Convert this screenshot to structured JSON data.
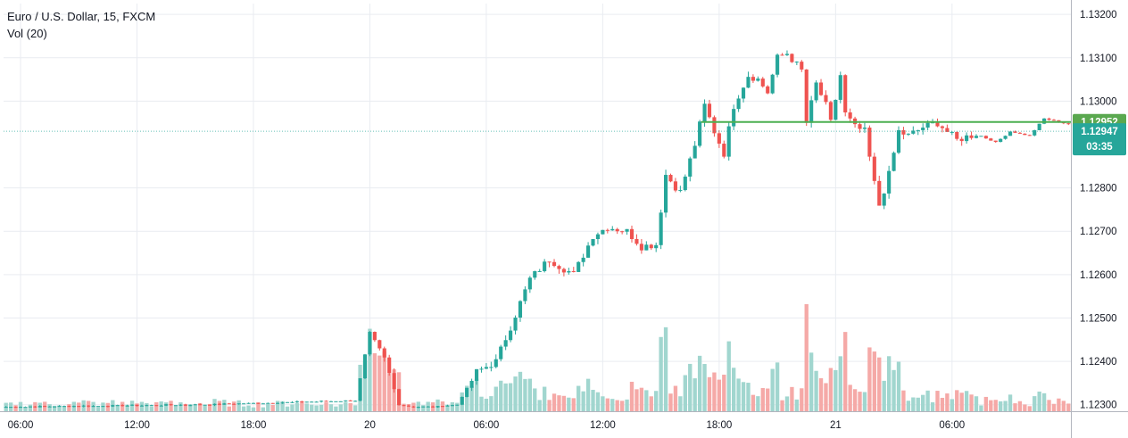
{
  "legend": {
    "title": "Euro / U.S. Dollar, 15, FXCM",
    "volume": "Vol (20)"
  },
  "chart_data": {
    "type": "candlestick",
    "symbol": "Euro / U.S. Dollar",
    "interval": "15",
    "source": "FXCM",
    "y_ticks": [
      "1.13200",
      "1.13100",
      "1.13000",
      "1.12800",
      "1.12700",
      "1.12600",
      "1.12500",
      "1.12400",
      "1.12300"
    ],
    "x_ticks": [
      {
        "label": "06:00",
        "bar": 3
      },
      {
        "label": "12:00",
        "bar": 27
      },
      {
        "label": "18:00",
        "bar": 51
      },
      {
        "label": "20",
        "bar": 75
      },
      {
        "label": "06:00",
        "bar": 99
      },
      {
        "label": "12:00",
        "bar": 123
      },
      {
        "label": "18:00",
        "bar": 147
      },
      {
        "label": "21",
        "bar": 171
      },
      {
        "label": "06:00",
        "bar": 195
      }
    ],
    "ylim": [
      1.12285,
      1.13225
    ],
    "grid": true,
    "colors": {
      "up": "#26a69a",
      "down": "#ef5350",
      "vol_up": "#a1d6cf",
      "vol_down": "#f5a9a7",
      "grid": "#e9ecf1",
      "horizontal_line": "#4caf50"
    },
    "horizontal_line": {
      "price": 1.12952,
      "label": "1.12952",
      "from_bar": 144
    },
    "last_price": {
      "price": 1.12947,
      "label": "1.12947",
      "countdown": "03:35"
    },
    "candles": [],
    "volume": []
  }
}
